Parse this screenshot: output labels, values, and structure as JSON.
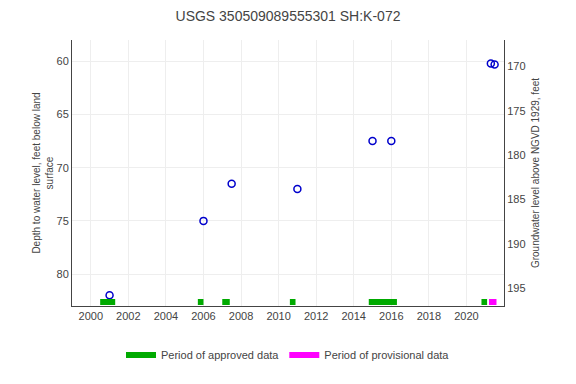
{
  "chart_data": {
    "type": "scatter",
    "title": "USGS 350509089555301 SH:K-072",
    "x": [
      2001.0,
      2006.0,
      2007.5,
      2011.0,
      2015.0,
      2016.0,
      2021.3,
      2021.5
    ],
    "values": [
      82.0,
      75.0,
      71.5,
      72.0,
      67.5,
      67.5,
      60.2,
      60.3
    ],
    "color": "#0000cc",
    "marker": "circle-open",
    "xlim": [
      1999,
      2022
    ],
    "xticks": [
      2000,
      2002,
      2004,
      2006,
      2008,
      2010,
      2012,
      2014,
      2016,
      2018,
      2020
    ],
    "ylim": [
      83,
      58
    ],
    "yticks": [
      60,
      65,
      70,
      75,
      80
    ],
    "y2lim": [
      197,
      167
    ],
    "y2ticks": [
      170,
      175,
      180,
      185,
      190,
      195
    ],
    "ylabel": "Depth to water level, feet below land\nsurface",
    "y2label": "Groundwater level above NGVD 1929, feet",
    "bands": [
      {
        "name": "Period of approved data",
        "color": "#00aa00",
        "ranges": [
          [
            2000.5,
            2001.3
          ],
          [
            2005.7,
            2006.0
          ],
          [
            2007.0,
            2007.4
          ],
          [
            2010.6,
            2010.9
          ],
          [
            2014.8,
            2016.3
          ],
          [
            2020.8,
            2021.1
          ]
        ]
      },
      {
        "name": "Period of provisional data",
        "color": "#ff00ff",
        "ranges": [
          [
            2021.2,
            2021.6
          ]
        ]
      }
    ],
    "grid": true,
    "legend": "bottom"
  }
}
